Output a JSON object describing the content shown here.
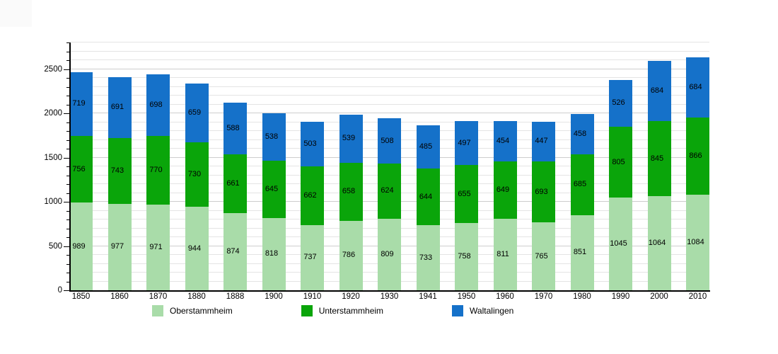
{
  "chart_data": {
    "type": "bar",
    "stacked": true,
    "title": "",
    "xlabel": "",
    "ylabel": "",
    "categories": [
      "1850",
      "1860",
      "1870",
      "1880",
      "1888",
      "1900",
      "1910",
      "1920",
      "1930",
      "1941",
      "1950",
      "1960",
      "1970",
      "1980",
      "1990",
      "2000",
      "2010"
    ],
    "series": [
      {
        "name": "Oberstammheim",
        "color": "#a9dca9",
        "values": [
          989,
          977,
          971,
          944,
          874,
          818,
          737,
          786,
          809,
          733,
          758,
          811,
          765,
          851,
          1045,
          1064,
          1084
        ]
      },
      {
        "name": "Unterstammheim",
        "color": "#0aa50a",
        "values": [
          756,
          743,
          770,
          730,
          661,
          645,
          662,
          658,
          624,
          644,
          655,
          649,
          693,
          685,
          805,
          845,
          866
        ]
      },
      {
        "name": "Waltalingen",
        "color": "#1571c9",
        "values": [
          719,
          691,
          698,
          659,
          588,
          538,
          503,
          539,
          508,
          485,
          497,
          454,
          447,
          458,
          526,
          684,
          684
        ]
      }
    ],
    "ylim": [
      0,
      2800
    ],
    "y_tick_step": 500,
    "y_minor_step": 100,
    "y_tick_labels": [
      "0",
      "500",
      "1000",
      "1500",
      "2000",
      "2500"
    ],
    "grid": true,
    "legend_position": "bottom",
    "colors": {
      "axis": "#000000",
      "grid_minor": "#e4e4e4",
      "grid_major": "#cdcdcd",
      "background": "#ffffff"
    }
  }
}
